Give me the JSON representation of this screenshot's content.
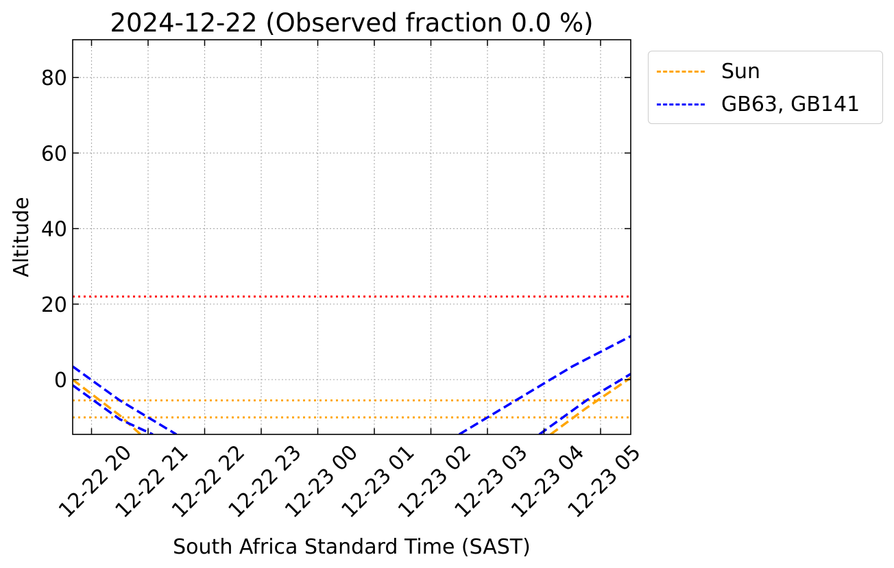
{
  "chart_data": {
    "type": "line",
    "title": "2024-12-22 (Observed fraction 0.0 %)",
    "xlabel": "South Africa Standard Time (SAST)",
    "ylabel": "Altitude",
    "xlim": [
      "2024-12-22 19:40",
      "2024-12-23 05:32"
    ],
    "ylim": [
      -14.5,
      90
    ],
    "grid": true,
    "legend_position": "outside-top-right",
    "x_tick_labels": [
      "12-22 20",
      "12-22 21",
      "12-22 22",
      "12-22 23",
      "12-23 00",
      "12-23 01",
      "12-23 02",
      "12-23 03",
      "12-23 04",
      "12-23 05"
    ],
    "x_tick_times": [
      "2024-12-22 20:00",
      "2024-12-22 21:00",
      "2024-12-22 22:00",
      "2024-12-22 23:00",
      "2024-12-23 00:00",
      "2024-12-23 01:00",
      "2024-12-23 02:00",
      "2024-12-23 03:00",
      "2024-12-23 04:00",
      "2024-12-23 05:00"
    ],
    "y_ticks": [
      0,
      20,
      40,
      60,
      80
    ],
    "y_tick_labels": [
      "0",
      "20",
      "40",
      "60",
      "80"
    ],
    "series": [
      {
        "name": "Sun",
        "color": "#ffa500",
        "style": "dashed",
        "segments": [
          [
            [
              "2024-12-22 19:40",
              0.0
            ],
            [
              "2024-12-22 20:30",
              -9.5
            ],
            [
              "2024-12-22 20:52",
              -14.5
            ]
          ],
          [
            [
              "2024-12-23 04:07",
              -14.5
            ],
            [
              "2024-12-23 04:45",
              -7.5
            ],
            [
              "2024-12-23 05:32",
              0.5
            ]
          ]
        ]
      },
      {
        "name": "GB63, GB141",
        "color": "#0000ff",
        "style": "dashed",
        "segments": [
          [
            [
              "2024-12-22 19:40",
              3.5
            ],
            [
              "2024-12-22 20:30",
              -5.5
            ],
            [
              "2024-12-22 21:30",
              -14.5
            ]
          ],
          [
            [
              "2024-12-22 19:40",
              -1.5
            ],
            [
              "2024-12-22 20:30",
              -10.5
            ],
            [
              "2024-12-22 21:05",
              -14.5
            ]
          ],
          [
            [
              "2024-12-23 02:30",
              -14.5
            ],
            [
              "2024-12-23 03:30",
              -5.5
            ],
            [
              "2024-12-23 04:30",
              3.5
            ],
            [
              "2024-12-23 05:32",
              11.5
            ]
          ],
          [
            [
              "2024-12-23 03:55",
              -14.5
            ],
            [
              "2024-12-23 04:45",
              -5.5
            ],
            [
              "2024-12-23 05:32",
              1.5
            ]
          ]
        ]
      }
    ],
    "reference_lines": [
      {
        "y": 22,
        "color": "#ff0000",
        "style": "dotted"
      },
      {
        "y": -5.5,
        "color": "#ffa500",
        "style": "dotted"
      },
      {
        "y": -10,
        "color": "#ffa500",
        "style": "dotted"
      }
    ]
  }
}
